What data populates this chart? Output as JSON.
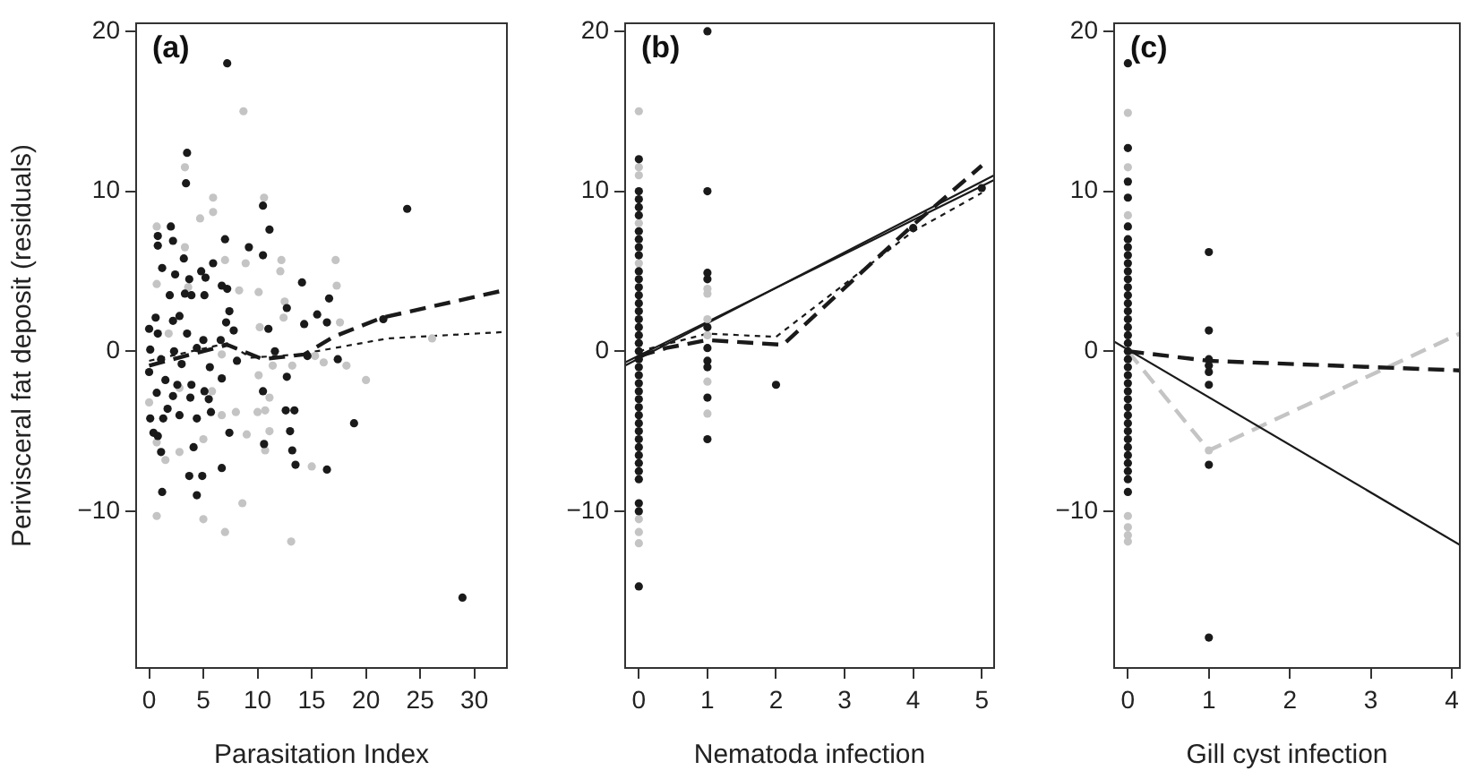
{
  "chart_data": [
    {
      "type": "scatter",
      "title": "(a)",
      "xlabel": "Parasitation Index",
      "ylabel": "Perivisceral fat deposit (residuals)",
      "xlim": [
        -1.2,
        33
      ],
      "xticks": [
        0,
        5,
        10,
        15,
        20,
        25,
        30
      ],
      "ylim": [
        -19.8,
        20.5
      ],
      "yticks": [
        -10,
        0,
        10,
        20
      ],
      "series": [
        {
          "marker": "circle",
          "color": "#c4c4c4",
          "x": [
            8.7,
            3.3,
            5.9,
            10.6,
            5.9,
            0.7,
            3.3,
            7.0,
            8.9,
            12.2,
            17.2,
            12.1,
            4.7,
            0.7,
            3.6,
            17.3,
            10.1,
            8.3,
            12.5,
            12.4,
            10.2,
            17.6,
            1.8,
            6.7,
            15.3,
            16.1,
            18.2,
            20.0,
            10.1,
            11.4,
            26.1,
            0,
            2.8,
            5.8,
            8.0,
            10.0,
            10.7,
            11.1,
            11.1,
            0.7,
            1.5,
            2.8,
            6.7,
            10.7,
            15.0,
            9.0,
            0.7,
            5.0,
            7.0,
            8.6,
            13.1,
            5.0,
            13.2
          ],
          "values": [
            15.0,
            11.5,
            9.6,
            9.6,
            8.7,
            7.8,
            6.5,
            5.7,
            5.5,
            5.7,
            5.7,
            5.0,
            8.3,
            4.2,
            4.0,
            4.1,
            3.7,
            3.8,
            3.1,
            2.1,
            1.5,
            1.8,
            1.1,
            -0.2,
            -0.3,
            -0.7,
            -0.9,
            -1.8,
            -1.5,
            -0.9,
            0.8,
            -3.2,
            -2.3,
            -2.5,
            -3.8,
            -3.8,
            -3.7,
            -2.9,
            -5.0,
            -5.7,
            -6.8,
            -6.3,
            -4.0,
            -6.2,
            -7.2,
            -5.2,
            -10.3,
            -10.5,
            -11.3,
            -9.5,
            -11.9,
            -5.5,
            -0.9
          ]
        },
        {
          "marker": "circle",
          "color": "#1a1a1a",
          "x": [
            7.2,
            3.5,
            3.4,
            23.8,
            10.5,
            11.1,
            2.0,
            0.8,
            0.8,
            2.2,
            7.0,
            9.2,
            3.2,
            10.5,
            5.9,
            1.2,
            4.8,
            2.4,
            3.7,
            5.2,
            6.7,
            7.2,
            14.1,
            16.6,
            1.9,
            3.3,
            3.9,
            5.1,
            7.4,
            12.7,
            15.5,
            21.6,
            0.6,
            2.8,
            2.2,
            7.1,
            7.8,
            11.0,
            14.3,
            16.4,
            0,
            0.8,
            3.5,
            5.0,
            6.6,
            0.1,
            2.3,
            4.4,
            11.6,
            14.6,
            17.4,
            1.1,
            3.0,
            5.6,
            8.1,
            0,
            1.5,
            2.6,
            3.9,
            5.1,
            6.7,
            0.7,
            2.2,
            3.8,
            5.5,
            10.5,
            12.7,
            1.7,
            2.8,
            4.4,
            5.7,
            12.6,
            13.4,
            0.1,
            1.3,
            0.4,
            0.8,
            7.4,
            13.0,
            18.9,
            10.6,
            4.1,
            13.2,
            1.1,
            13.5,
            6.7,
            16.4,
            3.7,
            4.9,
            1.2,
            4.4,
            28.9
          ],
          "values": [
            18.0,
            12.4,
            10.5,
            8.9,
            9.1,
            7.6,
            7.8,
            7.2,
            6.6,
            6.9,
            7.0,
            6.5,
            5.8,
            6.0,
            5.5,
            5.2,
            5.0,
            4.8,
            4.5,
            4.6,
            4.1,
            3.9,
            4.3,
            3.3,
            3.5,
            3.6,
            3.5,
            3.5,
            2.5,
            2.7,
            2.3,
            2.0,
            2.1,
            2.2,
            1.9,
            1.8,
            1.3,
            1.4,
            1.7,
            1.8,
            1.4,
            1.1,
            1.1,
            0.7,
            0.7,
            0.1,
            0,
            0.2,
            0.0,
            -0.3,
            -0.5,
            -0.5,
            -0.8,
            -1.0,
            -0.6,
            -1.3,
            -1.8,
            -2.1,
            -2.1,
            -2.5,
            -1.7,
            -2.6,
            -2.8,
            -2.9,
            -3.0,
            -2.5,
            -1.6,
            -3.6,
            -4.0,
            -4.2,
            -3.8,
            -3.7,
            -3.7,
            -4.2,
            -4.2,
            -5.1,
            -5.3,
            -5.1,
            -5.0,
            -4.5,
            -5.8,
            -6.0,
            -6.2,
            -6.3,
            -7.1,
            -7.3,
            -7.4,
            -7.8,
            -7.8,
            -8.8,
            -9.0,
            -15.4
          ]
        },
        {
          "type": "line",
          "line_style": "dotted",
          "color": "#1a1a1a",
          "x": [
            0,
            7.2,
            9.4,
            13.8,
            17.1,
            22,
            32.7
          ],
          "values": [
            -0.6,
            0.5,
            -0.4,
            -0.2,
            0.2,
            0.8,
            1.2
          ]
        },
        {
          "type": "line",
          "line_style": "dashed",
          "color": "#1a1a1a",
          "x": [
            0,
            7.2,
            10.5,
            14.3,
            17,
            21.5,
            32.7
          ],
          "values": [
            -0.9,
            0.4,
            -0.5,
            -0.2,
            0.9,
            2.1,
            3.8
          ]
        }
      ]
    },
    {
      "type": "scatter",
      "title": "(b)",
      "xlabel": "Nematoda infection",
      "xlim": [
        -0.2,
        5.18
      ],
      "xticks": [
        0,
        1,
        2,
        3,
        4,
        5
      ],
      "ylim": [
        -19.8,
        20.5
      ],
      "yticks": [
        -10,
        0,
        10,
        20
      ],
      "series": [
        {
          "marker": "circle",
          "color": "#c4c4c4",
          "x": [
            0,
            0,
            0,
            0,
            0,
            0,
            0,
            0,
            1,
            1,
            1,
            1,
            1,
            1
          ],
          "values": [
            15,
            11.5,
            11,
            8,
            5.5,
            -10.5,
            -11.3,
            -12,
            3.9,
            3.6,
            2.0,
            1.0,
            -1.9,
            -3.9
          ]
        },
        {
          "marker": "circle",
          "color": "#1a1a1a",
          "x": [
            0,
            0,
            0,
            0,
            0,
            0,
            0,
            0,
            0,
            0,
            0,
            0,
            0,
            0,
            0,
            0,
            0,
            0,
            0,
            0,
            0,
            0,
            0,
            0,
            0,
            0,
            0,
            0,
            0,
            0,
            0,
            0,
            0,
            0,
            0,
            0,
            0,
            0,
            0,
            1,
            1,
            1,
            1,
            1,
            1,
            1,
            1,
            1,
            1,
            2,
            4,
            5
          ],
          "values": [
            12,
            10,
            9.5,
            9,
            8.5,
            7.5,
            7,
            6.5,
            6,
            5,
            4.5,
            4,
            3.5,
            3,
            2.5,
            2,
            1.5,
            1,
            0.5,
            0,
            -0.5,
            -1,
            -1.5,
            -2,
            -2.5,
            -3,
            -3.5,
            -4,
            -4.5,
            -5,
            -5.5,
            -6,
            -6.5,
            -7,
            -7.5,
            -8,
            -9.5,
            -10,
            -14.7,
            20,
            10,
            4.9,
            4.5,
            1.5,
            0.2,
            -0.6,
            -1.0,
            -2.9,
            -5.5,
            -2.1,
            7.7,
            10.2
          ]
        },
        {
          "type": "line",
          "line_style": "dotted",
          "color": "#1a1a1a",
          "x": [
            0,
            1,
            2,
            4,
            5
          ],
          "values": [
            0,
            1.1,
            0.9,
            7.5,
            9.9
          ]
        },
        {
          "type": "line",
          "line_style": "dashed",
          "color": "#1a1a1a",
          "x": [
            0,
            0.4,
            1,
            2.1,
            4,
            5
          ],
          "values": [
            -0.3,
            0.2,
            0.7,
            0.4,
            7.9,
            11.6
          ]
        },
        {
          "type": "line",
          "line_style": "solid",
          "color": "#1a1a1a",
          "x": [
            -0.2,
            5.18
          ],
          "values": [
            -0.9,
            11.0
          ]
        },
        {
          "type": "line",
          "line_style": "solid",
          "color": "#1a1a1a",
          "x": [
            -0.2,
            5.18
          ],
          "values": [
            -0.7,
            10.7
          ]
        }
      ]
    },
    {
      "type": "scatter",
      "title": "(c)",
      "xlabel": "Gill cyst infection",
      "xlim": [
        -0.17,
        4.1
      ],
      "xticks": [
        0,
        1,
        2,
        3,
        4
      ],
      "ylim": [
        -19.8,
        20.5
      ],
      "yticks": [
        -10,
        0,
        10,
        20
      ],
      "series": [
        {
          "marker": "circle",
          "color": "#c4c4c4",
          "x": [
            0,
            0,
            0,
            0,
            0,
            0,
            0,
            1
          ],
          "values": [
            14.9,
            11.5,
            8.5,
            -10.3,
            -11,
            -11.5,
            -11.9,
            -6.2
          ]
        },
        {
          "marker": "circle",
          "color": "#1a1a1a",
          "x": [
            0,
            0,
            0,
            0,
            0,
            0,
            0,
            0,
            0,
            0,
            0,
            0,
            0,
            0,
            0,
            0,
            0,
            0,
            0,
            0,
            0,
            0,
            0,
            0,
            0,
            0,
            0,
            0,
            0,
            0,
            0,
            0,
            0,
            0,
            0,
            0,
            0,
            1,
            1,
            1,
            1,
            1,
            1,
            1,
            1
          ],
          "values": [
            18,
            12.7,
            10.6,
            9.6,
            7.8,
            7,
            6.5,
            6,
            5.5,
            5,
            4.5,
            4,
            3.5,
            3,
            2.5,
            2,
            1.5,
            1,
            0.5,
            0,
            -0.5,
            -1,
            -1.5,
            -2,
            -2.5,
            -3,
            -3.5,
            -4,
            -4.5,
            -5,
            -5.5,
            -6,
            -6.5,
            -7,
            -7.5,
            -8,
            -8.8,
            6.2,
            1.3,
            -0.5,
            -0.9,
            -1.3,
            -2.1,
            -7.1,
            -17.9
          ]
        },
        {
          "type": "line",
          "line_style": "dashed",
          "color": "#c4c4c4",
          "x": [
            0,
            1,
            4.1
          ],
          "values": [
            0,
            -6.2,
            1.1
          ]
        },
        {
          "type": "line",
          "line_style": "dashed",
          "color": "#1a1a1a",
          "x": [
            0,
            1,
            4.1
          ],
          "values": [
            0,
            -0.6,
            -1.2
          ]
        },
        {
          "type": "line",
          "line_style": "solid",
          "color": "#1a1a1a",
          "x": [
            -0.17,
            4.1
          ],
          "values": [
            0.6,
            -12.1
          ]
        }
      ]
    }
  ]
}
